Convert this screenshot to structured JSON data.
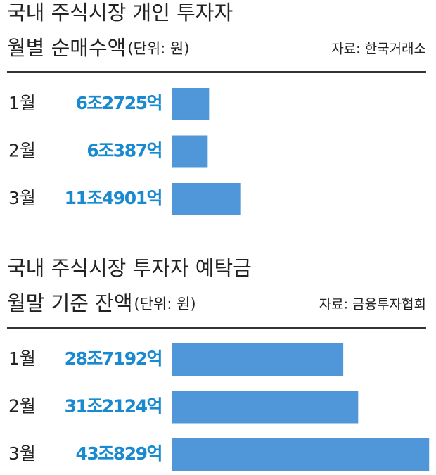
{
  "chart_data": [
    {
      "type": "bar",
      "title": "국내 주식시장 개인 투자자",
      "subtitle": "월별 순매수액",
      "unit": "(단위: 원)",
      "source": "자료: 한국거래소",
      "categories": [
        "1월",
        "2월",
        "3월"
      ],
      "values": [
        62725,
        60387,
        114901
      ],
      "value_labels": [
        "6조2725억",
        "6조387억",
        "11조4901억"
      ],
      "color": "#4f97d8"
    },
    {
      "type": "bar",
      "title": "국내 주식시장 투자자 예탁금",
      "subtitle": "월말 기준 잔액",
      "unit": "(단위: 원)",
      "source": "자료: 금융투자협회",
      "categories": [
        "1월",
        "2월",
        "3월"
      ],
      "values": [
        287192,
        312124,
        430829
      ],
      "value_labels": [
        "28조7192억",
        "31조2124억",
        "43조829억"
      ],
      "color": "#4f97d8"
    }
  ]
}
